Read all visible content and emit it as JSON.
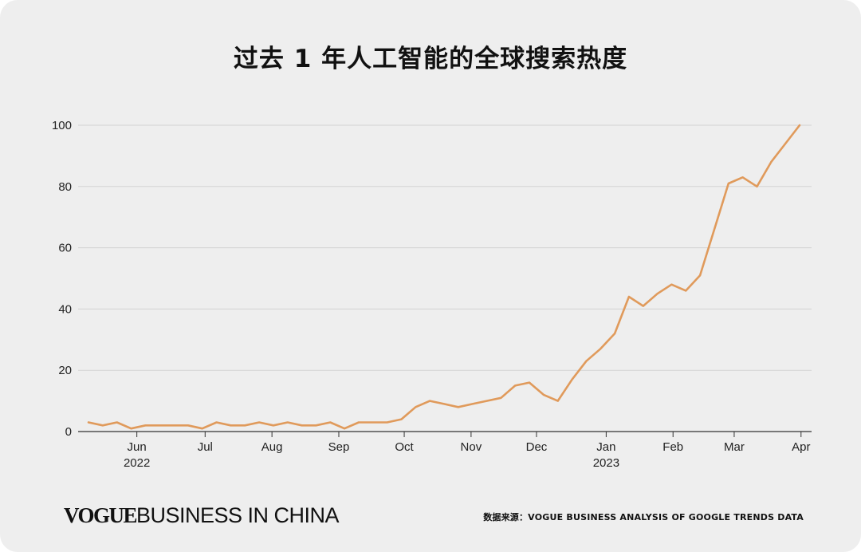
{
  "chart_data": {
    "type": "line",
    "title": "过去 1 年人工智能的全球搜索热度",
    "xlabel": "",
    "ylabel": "",
    "ylim": [
      0,
      100
    ],
    "yticks": [
      0,
      20,
      40,
      60,
      80,
      100
    ],
    "grid": true,
    "line_color": "#e09a5b",
    "x_ticks": [
      {
        "label": "Jun",
        "sub": "2022",
        "index": 3.4
      },
      {
        "label": "Jul",
        "sub": "",
        "index": 8.2
      },
      {
        "label": "Aug",
        "sub": "",
        "index": 12.9
      },
      {
        "label": "Sep",
        "sub": "",
        "index": 17.6
      },
      {
        "label": "Oct",
        "sub": "",
        "index": 22.2
      },
      {
        "label": "Nov",
        "sub": "",
        "index": 26.9
      },
      {
        "label": "Dec",
        "sub": "",
        "index": 31.5
      },
      {
        "label": "Jan",
        "sub": "2023",
        "index": 36.4
      },
      {
        "label": "Feb",
        "sub": "",
        "index": 41.1
      },
      {
        "label": "Mar",
        "sub": "",
        "index": 45.4
      },
      {
        "label": "Apr",
        "sub": "",
        "index": 50.1
      }
    ],
    "series": [
      {
        "values": [
          3,
          2,
          3,
          1,
          2,
          2,
          2,
          2,
          1,
          3,
          2,
          2,
          3,
          2,
          3,
          2,
          2,
          3,
          1,
          3,
          3,
          3,
          4,
          8,
          10,
          9,
          8,
          9,
          10,
          11,
          15,
          16,
          12,
          10,
          17,
          23,
          27,
          32,
          44,
          41,
          45,
          48,
          46,
          51,
          66,
          81,
          83,
          80,
          88,
          94,
          100
        ]
      }
    ]
  },
  "footer": {
    "logo_vogue": "VOGUE",
    "logo_rest": "BUSINESS IN CHINA",
    "source": "数据来源：VOGUE BUSINESS ANALYSIS OF GOOGLE TRENDS DATA"
  }
}
